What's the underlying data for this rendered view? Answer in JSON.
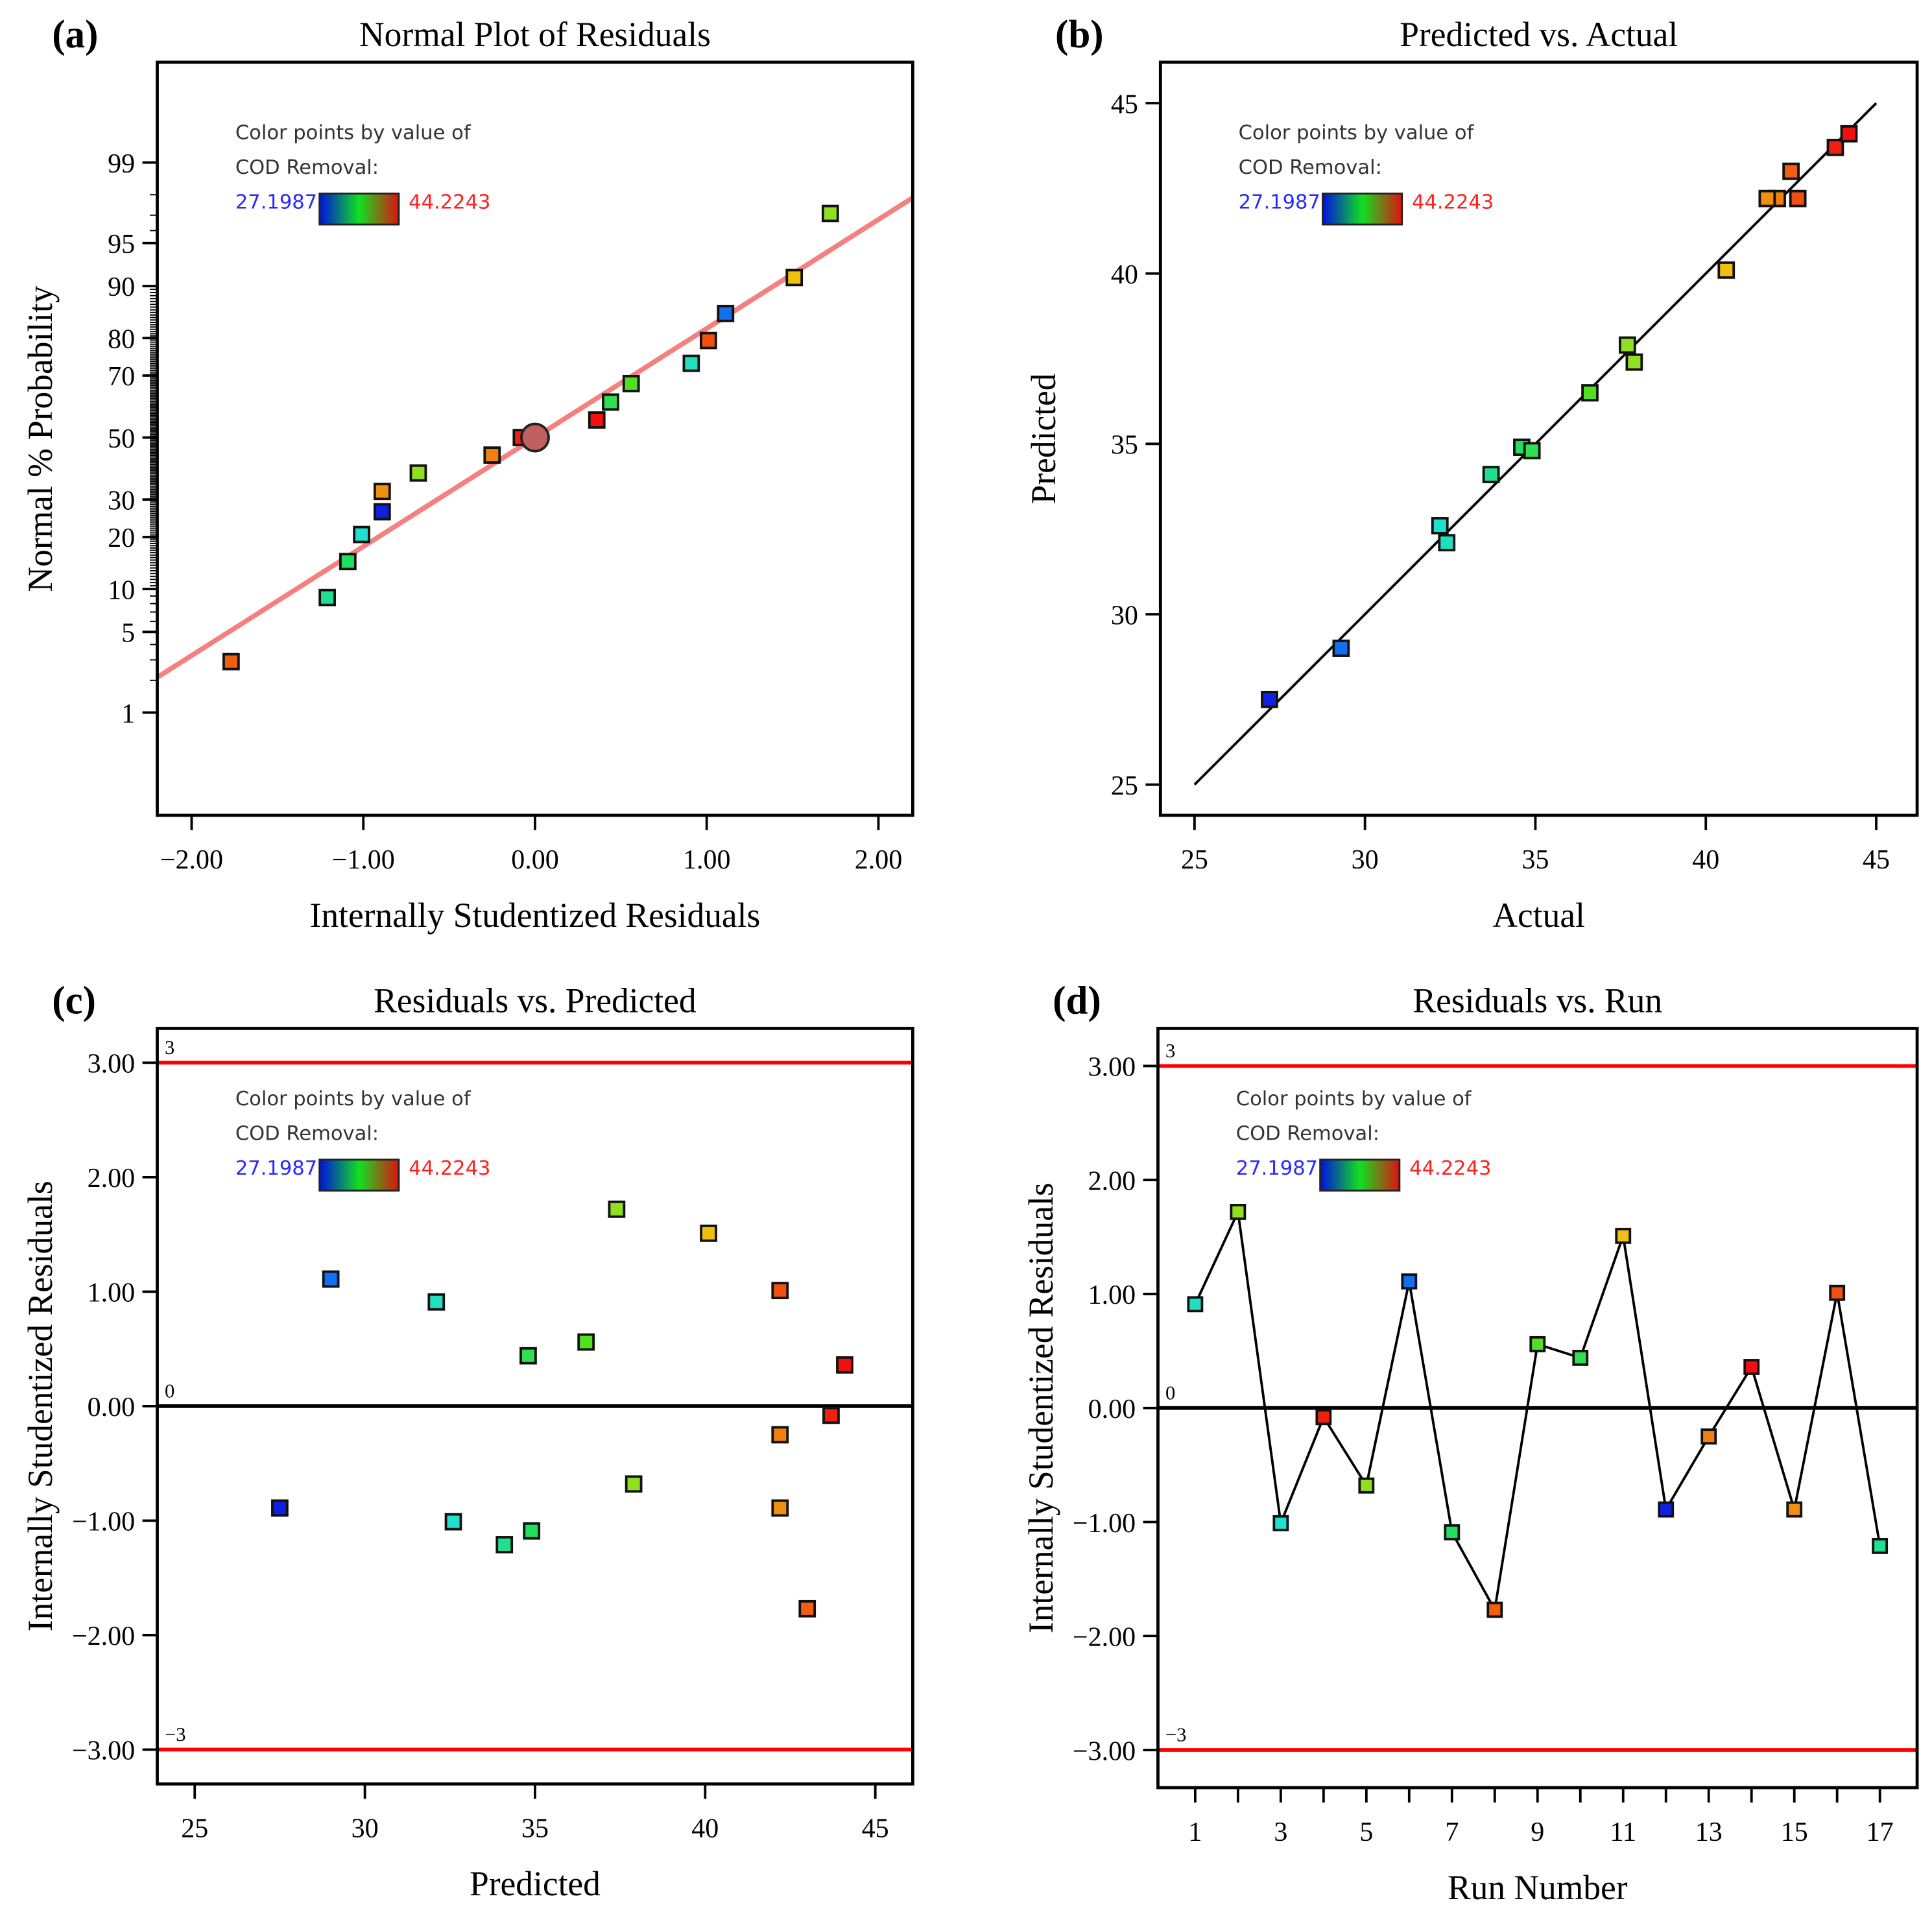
{
  "legend": {
    "line1": "Color points by value of",
    "line2": "COD Removal:",
    "min": "27.1987",
    "max": "44.2243",
    "min_color": "#2a2aff",
    "max_color": "#ff2020"
  },
  "chart_data": [
    {
      "panel": "(a)",
      "type": "scatter",
      "title": "Normal Plot of Residuals",
      "xlabel": "Internally Studentized Residuals",
      "ylabel": "Normal % Probability",
      "xlim": [
        -2.2,
        2.2
      ],
      "xticks": [
        "-2.00",
        "-1.00",
        "0.00",
        "1.00",
        "2.00"
      ],
      "xtick_values": [
        -2,
        -1,
        0,
        1,
        2
      ],
      "yscale": "normal-probability",
      "yticks": [
        "1",
        "5",
        "10",
        "20",
        "30",
        "50",
        "70",
        "80",
        "90",
        "95",
        "99"
      ],
      "ytick_values": [
        1,
        5,
        10,
        20,
        30,
        50,
        70,
        80,
        90,
        95,
        99
      ],
      "fit_line": {
        "slope_z_per_residual": 0.922,
        "color": "#f58080"
      },
      "center_marker": {
        "x": 0,
        "y": 50,
        "color": "#c06060"
      },
      "points": [
        {
          "x": -1.77,
          "y": 2.9,
          "color": "#f06010"
        },
        {
          "x": -1.21,
          "y": 8.8,
          "color": "#20e090"
        },
        {
          "x": -1.09,
          "y": 14.7,
          "color": "#20e060"
        },
        {
          "x": -1.01,
          "y": 20.6,
          "color": "#20e0d0"
        },
        {
          "x": -0.89,
          "y": 26.5,
          "color": "#1020e0"
        },
        {
          "x": -0.89,
          "y": 32.4,
          "color": "#f09010"
        },
        {
          "x": -0.68,
          "y": 38.2,
          "color": "#90e020"
        },
        {
          "x": -0.25,
          "y": 44.1,
          "color": "#f08010"
        },
        {
          "x": -0.08,
          "y": 50.0,
          "color": "#f02010"
        },
        {
          "x": 0.36,
          "y": 55.9,
          "color": "#f01010"
        },
        {
          "x": 0.44,
          "y": 61.8,
          "color": "#30e050"
        },
        {
          "x": 0.56,
          "y": 67.6,
          "color": "#50e020"
        },
        {
          "x": 0.91,
          "y": 73.5,
          "color": "#20e0c0"
        },
        {
          "x": 1.01,
          "y": 79.4,
          "color": "#f05010"
        },
        {
          "x": 1.11,
          "y": 85.3,
          "color": "#1070f0"
        },
        {
          "x": 1.51,
          "y": 91.2,
          "color": "#f0c010"
        },
        {
          "x": 1.72,
          "y": 97.1,
          "color": "#90e020"
        }
      ]
    },
    {
      "panel": "(b)",
      "type": "scatter",
      "title": "Predicted vs. Actual",
      "xlabel": "Actual",
      "ylabel": "Predicted",
      "xlim": [
        24,
        46.2
      ],
      "ylim": [
        24.1,
        46.2
      ],
      "xticks": [
        "25",
        "30",
        "35",
        "40",
        "45"
      ],
      "xtick_values": [
        25,
        30,
        35,
        40,
        45
      ],
      "yticks": [
        "25",
        "30",
        "35",
        "40",
        "45"
      ],
      "ytick_values": [
        25,
        30,
        35,
        40,
        45
      ],
      "fit_line": {
        "from": [
          25,
          25
        ],
        "to": [
          45,
          45
        ],
        "color": "#000000"
      },
      "points": [
        {
          "x": 32.4,
          "y": 32.1,
          "color": "#20e0c0"
        },
        {
          "x": 37.9,
          "y": 37.4,
          "color": "#90e020"
        },
        {
          "x": 32.2,
          "y": 32.6,
          "color": "#20e0d0"
        },
        {
          "x": 43.8,
          "y": 43.7,
          "color": "#f02010"
        },
        {
          "x": 37.7,
          "y": 37.9,
          "color": "#90e020"
        },
        {
          "x": 29.3,
          "y": 29.0,
          "color": "#1070f0"
        },
        {
          "x": 34.6,
          "y": 34.9,
          "color": "#20e060"
        },
        {
          "x": 42.5,
          "y": 43.0,
          "color": "#f06010"
        },
        {
          "x": 36.6,
          "y": 36.5,
          "color": "#50e020"
        },
        {
          "x": 34.9,
          "y": 34.8,
          "color": "#30e050"
        },
        {
          "x": 40.6,
          "y": 40.1,
          "color": "#f0c010"
        },
        {
          "x": 27.2,
          "y": 27.5,
          "color": "#1020e0"
        },
        {
          "x": 42.1,
          "y": 42.2,
          "color": "#f08010"
        },
        {
          "x": 44.2,
          "y": 44.1,
          "color": "#f01010"
        },
        {
          "x": 41.8,
          "y": 42.2,
          "color": "#f09010"
        },
        {
          "x": 42.7,
          "y": 42.2,
          "color": "#f05010"
        },
        {
          "x": 33.7,
          "y": 34.1,
          "color": "#20e090"
        }
      ]
    },
    {
      "panel": "(c)",
      "type": "scatter",
      "title": "Residuals vs. Predicted",
      "xlabel": "Predicted",
      "ylabel": "Internally Studentized Residuals",
      "xlim": [
        23.9,
        46.1
      ],
      "ylim": [
        -3.3,
        3.3
      ],
      "xticks": [
        "25",
        "30",
        "35",
        "40",
        "45"
      ],
      "xtick_values": [
        25,
        30,
        35,
        40,
        45
      ],
      "yticks": [
        "-3.00",
        "-2.00",
        "-1.00",
        "0.00",
        "1.00",
        "2.00",
        "3.00"
      ],
      "ytick_values": [
        -3,
        -2,
        -1,
        0,
        1,
        2,
        3
      ],
      "hlines": [
        {
          "y": 3,
          "label": "3",
          "color": "#ff0000"
        },
        {
          "y": 0,
          "label": "0",
          "color": "#000000"
        },
        {
          "y": -3,
          "label": "−3",
          "color": "#ff0000"
        }
      ],
      "points": [
        {
          "x": 32.1,
          "y": 0.91,
          "color": "#20e0c0"
        },
        {
          "x": 37.4,
          "y": 1.72,
          "color": "#90e020"
        },
        {
          "x": 32.6,
          "y": -1.01,
          "color": "#20e0d0"
        },
        {
          "x": 43.7,
          "y": -0.08,
          "color": "#f02010"
        },
        {
          "x": 37.9,
          "y": -0.68,
          "color": "#90e020"
        },
        {
          "x": 29.0,
          "y": 1.11,
          "color": "#1070f0"
        },
        {
          "x": 34.9,
          "y": -1.09,
          "color": "#20e060"
        },
        {
          "x": 43.0,
          "y": -1.77,
          "color": "#f06010"
        },
        {
          "x": 36.5,
          "y": 0.56,
          "color": "#50e020"
        },
        {
          "x": 34.8,
          "y": 0.44,
          "color": "#30e050"
        },
        {
          "x": 40.1,
          "y": 1.51,
          "color": "#f0c010"
        },
        {
          "x": 27.5,
          "y": -0.89,
          "color": "#1020e0"
        },
        {
          "x": 42.2,
          "y": -0.25,
          "color": "#f08010"
        },
        {
          "x": 44.1,
          "y": 0.36,
          "color": "#f01010"
        },
        {
          "x": 42.2,
          "y": -0.89,
          "color": "#f09010"
        },
        {
          "x": 42.2,
          "y": 1.01,
          "color": "#f05010"
        },
        {
          "x": 34.1,
          "y": -1.21,
          "color": "#20e090"
        }
      ]
    },
    {
      "panel": "(d)",
      "type": "line",
      "title": "Residuals vs. Run",
      "xlabel": "Run Number",
      "ylabel": "Internally Studentized Residuals",
      "xlim": [
        0.13,
        17.87
      ],
      "ylim": [
        -3.33,
        3.33
      ],
      "xticks": [
        "1",
        "3",
        "5",
        "7",
        "9",
        "11",
        "13",
        "15",
        "17"
      ],
      "xtick_values": [
        1,
        3,
        5,
        7,
        9,
        11,
        13,
        15,
        17
      ],
      "minor_xtick_values": [
        2,
        4,
        6,
        8,
        10,
        12,
        14,
        16
      ],
      "yticks": [
        "-3.00",
        "-2.00",
        "-1.00",
        "0.00",
        "1.00",
        "2.00",
        "3.00"
      ],
      "ytick_values": [
        -3,
        -2,
        -1,
        0,
        1,
        2,
        3
      ],
      "hlines": [
        {
          "y": 3,
          "label": "3",
          "color": "#ff0000"
        },
        {
          "y": 0,
          "label": "0",
          "color": "#000000"
        },
        {
          "y": -3,
          "label": "−3",
          "color": "#ff0000"
        }
      ],
      "points": [
        {
          "x": 1,
          "y": 0.91,
          "color": "#20e0c0"
        },
        {
          "x": 2,
          "y": 1.72,
          "color": "#90e020"
        },
        {
          "x": 3,
          "y": -1.01,
          "color": "#20e0d0"
        },
        {
          "x": 4,
          "y": -0.08,
          "color": "#f02010"
        },
        {
          "x": 5,
          "y": -0.68,
          "color": "#90e020"
        },
        {
          "x": 6,
          "y": 1.11,
          "color": "#1070f0"
        },
        {
          "x": 7,
          "y": -1.09,
          "color": "#20e060"
        },
        {
          "x": 8,
          "y": -1.77,
          "color": "#f06010"
        },
        {
          "x": 9,
          "y": 0.56,
          "color": "#50e020"
        },
        {
          "x": 10,
          "y": 0.44,
          "color": "#30e050"
        },
        {
          "x": 11,
          "y": 1.51,
          "color": "#f0c010"
        },
        {
          "x": 12,
          "y": -0.89,
          "color": "#1020e0"
        },
        {
          "x": 13,
          "y": -0.25,
          "color": "#f08010"
        },
        {
          "x": 14,
          "y": 0.36,
          "color": "#f01010"
        },
        {
          "x": 15,
          "y": -0.89,
          "color": "#f09010"
        },
        {
          "x": 16,
          "y": 1.01,
          "color": "#f05010"
        },
        {
          "x": 17,
          "y": -1.21,
          "color": "#20e090"
        }
      ]
    }
  ]
}
